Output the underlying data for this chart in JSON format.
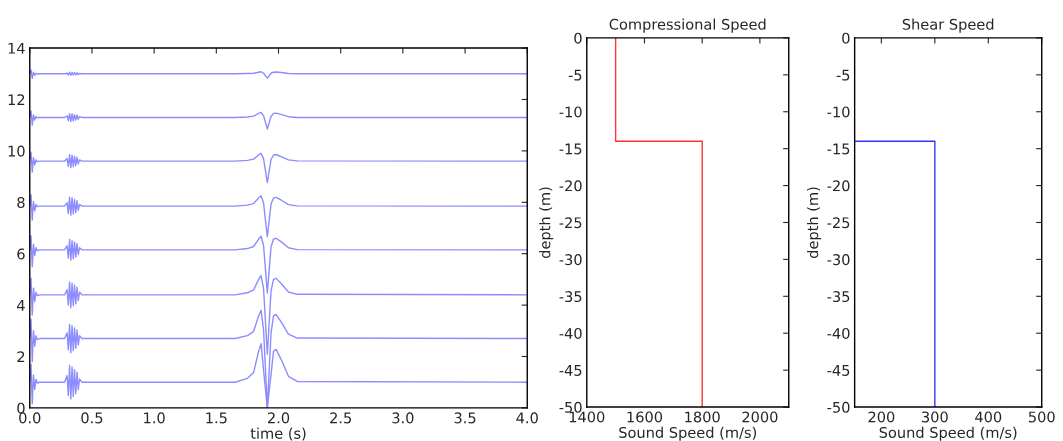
{
  "chart_data": [
    {
      "type": "line",
      "xlabel": "time (s)",
      "xlim": [
        0,
        4
      ],
      "ylim": [
        0,
        14
      ],
      "xticks": [
        {
          "value": 0,
          "label": "0.0"
        },
        {
          "value": 0.5,
          "label": "0.5"
        },
        {
          "value": 1,
          "label": "1.0"
        },
        {
          "value": 1.5,
          "label": "1.5"
        },
        {
          "value": 2,
          "label": "2.0"
        },
        {
          "value": 2.5,
          "label": "2.5"
        },
        {
          "value": 3,
          "label": "3.0"
        },
        {
          "value": 3.5,
          "label": "3.5"
        },
        {
          "value": 4,
          "label": "4.0"
        }
      ],
      "yticks": [
        0,
        2,
        4,
        6,
        8,
        10,
        12,
        14
      ],
      "x": [
        0,
        0.01,
        0.02,
        0.03,
        0.04,
        0.05,
        0.06,
        0.08,
        0.28,
        0.3,
        0.31,
        0.32,
        0.33,
        0.34,
        0.35,
        0.36,
        0.37,
        0.38,
        0.39,
        0.4,
        0.42,
        1.65,
        1.75,
        1.8,
        1.84,
        1.86,
        1.88,
        1.91,
        1.94,
        1.96,
        1.98,
        2.02,
        2.08,
        2.15,
        4.0
      ],
      "series": [
        {
          "color": "#8c8cff",
          "values": [
            1.0,
            1.7,
            0.16,
            1.28,
            0.72,
            1.11,
            0.97,
            1.0,
            1.0,
            1.26,
            0.48,
            1.65,
            0.35,
            1.59,
            0.45,
            1.49,
            0.55,
            1.39,
            0.71,
            1.13,
            1.0,
            1.0,
            1.15,
            1.38,
            2.2,
            2.5,
            1.45,
            0.0,
            1.3,
            2.2,
            2.28,
            1.9,
            1.23,
            1.03,
            1.0
          ]
        },
        {
          "color": "#8c8cff",
          "values": [
            2.7,
            3.45,
            1.8,
            3.0,
            2.4,
            2.81,
            2.66,
            2.7,
            2.7,
            2.92,
            2.26,
            3.25,
            2.15,
            3.2,
            2.23,
            3.11,
            2.32,
            3.03,
            2.45,
            2.81,
            2.7,
            2.7,
            2.81,
            2.98,
            3.58,
            3.8,
            3.03,
            0.0,
            2.92,
            3.58,
            3.64,
            3.36,
            2.87,
            2.72,
            2.7
          ]
        },
        {
          "color": "#8c8cff",
          "values": [
            4.4,
            5.05,
            3.62,
            4.66,
            4.14,
            4.5,
            4.37,
            4.4,
            4.4,
            4.6,
            4.0,
            4.9,
            3.9,
            4.85,
            3.98,
            4.78,
            4.05,
            4.7,
            4.18,
            4.5,
            4.4,
            4.4,
            4.48,
            4.59,
            5.0,
            5.15,
            4.63,
            2.1,
            4.55,
            5.0,
            5.04,
            4.85,
            4.51,
            4.42,
            4.4
          ]
        },
        {
          "color": "#8c8cff",
          "values": [
            6.15,
            6.7,
            5.49,
            6.37,
            5.93,
            6.23,
            6.12,
            6.15,
            6.15,
            6.31,
            5.83,
            6.55,
            5.75,
            6.51,
            5.81,
            6.45,
            5.87,
            6.39,
            5.97,
            6.23,
            6.15,
            6.15,
            6.2,
            6.28,
            6.57,
            6.68,
            6.31,
            4.47,
            6.26,
            6.57,
            6.6,
            6.47,
            6.23,
            6.16,
            6.15
          ]
        },
        {
          "color": "#8c8cff",
          "values": [
            7.85,
            8.3,
            7.31,
            8.03,
            7.67,
            7.92,
            7.83,
            7.85,
            7.85,
            7.99,
            7.57,
            8.2,
            7.5,
            8.17,
            7.55,
            8.11,
            7.6,
            8.06,
            7.69,
            7.92,
            7.85,
            7.85,
            7.89,
            7.95,
            8.17,
            8.25,
            7.97,
            6.66,
            7.93,
            8.17,
            8.19,
            8.09,
            7.91,
            7.86,
            7.85
          ]
        },
        {
          "color": "#8c8cff",
          "values": [
            9.6,
            9.95,
            9.18,
            9.74,
            9.46,
            9.65,
            9.58,
            9.6,
            9.6,
            9.7,
            9.4,
            9.85,
            9.35,
            9.83,
            9.39,
            9.79,
            9.43,
            9.75,
            9.49,
            9.65,
            9.6,
            9.6,
            9.63,
            9.68,
            9.84,
            9.9,
            9.69,
            8.77,
            9.66,
            9.84,
            9.86,
            9.78,
            9.65,
            9.61,
            9.6
          ]
        },
        {
          "color": "#8c8cff",
          "values": [
            11.3,
            11.55,
            11.0,
            11.4,
            11.2,
            11.34,
            11.29,
            11.3,
            11.3,
            11.36,
            11.18,
            11.45,
            11.15,
            11.44,
            11.17,
            11.41,
            11.2,
            11.39,
            11.23,
            11.33,
            11.3,
            11.3,
            11.32,
            11.35,
            11.46,
            11.5,
            11.36,
            10.85,
            11.34,
            11.46,
            11.47,
            11.42,
            11.33,
            11.3,
            11.3
          ]
        },
        {
          "color": "#8c8cff",
          "values": [
            13.0,
            13.15,
            12.82,
            13.06,
            12.94,
            13.02,
            12.99,
            13.0,
            13.0,
            13.02,
            12.95,
            13.06,
            12.94,
            13.05,
            12.95,
            13.05,
            12.96,
            13.04,
            12.97,
            13.01,
            13.0,
            13.0,
            13.01,
            13.02,
            13.06,
            13.08,
            13.02,
            12.83,
            13.02,
            13.06,
            13.07,
            13.05,
            13.01,
            13.0,
            13.0
          ]
        }
      ]
    },
    {
      "type": "line",
      "title": "Compressional Speed",
      "xlabel": "Sound Speed (m/s)",
      "ylabel": "depth (m)",
      "xlim": [
        1400,
        2100
      ],
      "ylim": [
        -50,
        0
      ],
      "xticks": [
        1400,
        1600,
        1800,
        2000
      ],
      "yticks": [
        0,
        -5,
        -10,
        -15,
        -20,
        -25,
        -30,
        -35,
        -40,
        -45,
        -50
      ],
      "series": [
        {
          "color": "#ff3333",
          "x": [
            1500,
            1500,
            1800,
            1800
          ],
          "values": [
            0,
            -14,
            -14,
            -50
          ]
        }
      ]
    },
    {
      "type": "line",
      "title": "Shear Speed",
      "xlabel": "Sound Speed (m/s)",
      "ylabel": "depth (m)",
      "xlim": [
        150,
        500
      ],
      "ylim": [
        -50,
        0
      ],
      "xticks": [
        200,
        300,
        400,
        500
      ],
      "yticks": [
        0,
        -5,
        -10,
        -15,
        -20,
        -25,
        -30,
        -35,
        -40,
        -45,
        -50
      ],
      "series": [
        {
          "color": "#3333ff",
          "x": [
            150,
            300,
            300
          ],
          "values": [
            -14,
            -14,
            -50
          ]
        }
      ]
    }
  ]
}
